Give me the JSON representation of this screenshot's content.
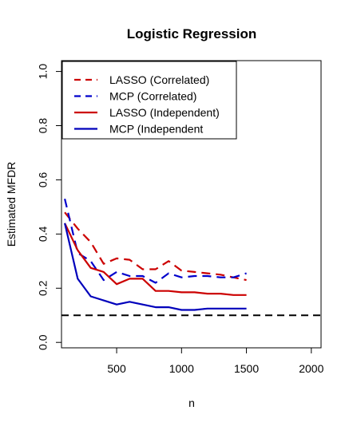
{
  "chart_data": {
    "type": "line",
    "title": "Logistic Regression",
    "xlabel": "n",
    "ylabel": "Estimated MFDR",
    "xlim": [
      75,
      2075
    ],
    "ylim": [
      -0.02,
      1.04
    ],
    "x_ticks": [
      500,
      1000,
      1500,
      2000
    ],
    "y_ticks": [
      0.0,
      0.2,
      0.4,
      0.6,
      0.8,
      1.0
    ],
    "x_tick_labels": [
      "500",
      "1000",
      "1500",
      "2000"
    ],
    "y_tick_labels": [
      "0.0",
      "0.2",
      "0.4",
      "0.6",
      "0.8",
      "1.0"
    ],
    "grid": false,
    "legend_position": "top-left",
    "reference_line": {
      "y": 0.1,
      "style": "dashed",
      "color": "#000000"
    },
    "series": [
      {
        "name": "LASSO (Correlated)",
        "color": "#cc0000",
        "dash": "dashed",
        "x": [
          100,
          200,
          300,
          400,
          500,
          600,
          700,
          800,
          900,
          1000,
          1100,
          1200,
          1300,
          1400,
          1500
        ],
        "y": [
          0.48,
          0.42,
          0.37,
          0.29,
          0.31,
          0.305,
          0.27,
          0.27,
          0.3,
          0.265,
          0.26,
          0.255,
          0.25,
          0.24,
          0.23
        ]
      },
      {
        "name": "MCP (Correlated)",
        "color": "#0000cc",
        "dash": "dashed",
        "x": [
          100,
          200,
          300,
          400,
          500,
          600,
          700,
          800,
          900,
          1000,
          1100,
          1200,
          1300,
          1400,
          1500
        ],
        "y": [
          0.53,
          0.33,
          0.3,
          0.23,
          0.26,
          0.245,
          0.245,
          0.22,
          0.255,
          0.24,
          0.245,
          0.245,
          0.24,
          0.24,
          0.255
        ]
      },
      {
        "name": "LASSO (Independent)",
        "color": "#cc0000",
        "dash": "solid",
        "x": [
          100,
          200,
          300,
          400,
          500,
          600,
          700,
          800,
          900,
          1000,
          1100,
          1200,
          1300,
          1400,
          1500
        ],
        "y": [
          0.44,
          0.34,
          0.275,
          0.26,
          0.215,
          0.235,
          0.235,
          0.19,
          0.19,
          0.185,
          0.185,
          0.18,
          0.18,
          0.175,
          0.175
        ]
      },
      {
        "name": "MCP (Independent",
        "color": "#0000bb",
        "dash": "solid",
        "x": [
          100,
          200,
          300,
          400,
          500,
          600,
          700,
          800,
          900,
          1000,
          1100,
          1200,
          1300,
          1400,
          1500
        ],
        "y": [
          0.44,
          0.235,
          0.17,
          0.155,
          0.14,
          0.15,
          0.14,
          0.13,
          0.13,
          0.12,
          0.12,
          0.125,
          0.125,
          0.125,
          0.125
        ]
      }
    ]
  }
}
